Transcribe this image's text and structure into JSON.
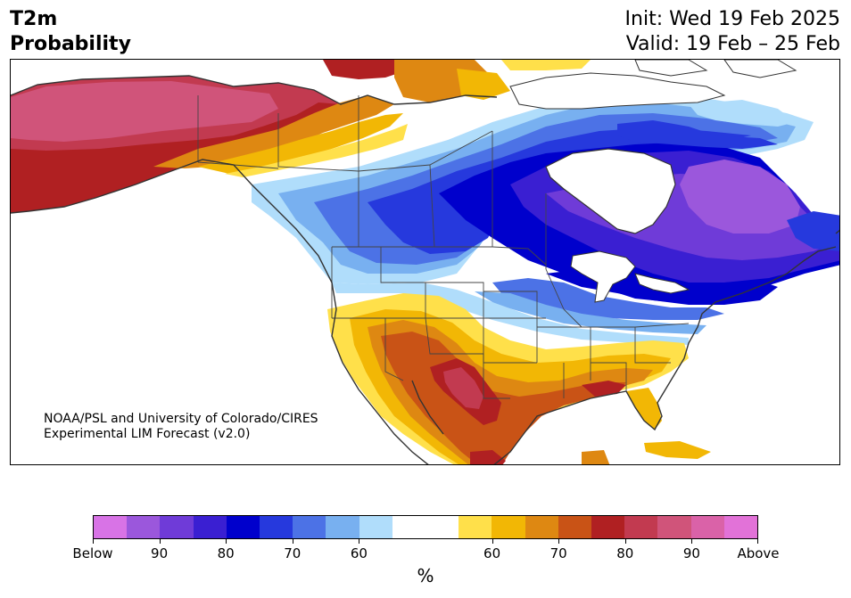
{
  "title": {
    "left_line1": "T2m",
    "left_line2": "Probability",
    "right_line1": "Init: Wed 19 Feb 2025",
    "right_line2": "Valid: 19 Feb – 25 Feb"
  },
  "map": {
    "region": "North America",
    "credit_line1": "NOAA/PSL and University of Colorado/CIRES",
    "credit_line2": "Experimental LIM Forecast (v2.0)"
  },
  "colorbar": {
    "unit": "%",
    "colors": [
      "#d873e6",
      "#9b57dc",
      "#6f3bd8",
      "#3a1fd2",
      "#0000cc",
      "#2639dd",
      "#4c72e6",
      "#78b0f0",
      "#b0ddfb",
      "#ffffff",
      "#ffffff",
      "#ffe04a",
      "#f2b705",
      "#de8812",
      "#c95316",
      "#b02022",
      "#c23a50",
      "#d0547a",
      "#da62a8",
      "#e272d8"
    ],
    "labels": [
      "Below",
      "90",
      "80",
      "70",
      "60",
      "60",
      "70",
      "80",
      "90",
      "Above"
    ],
    "label_positions": [
      0,
      2,
      4,
      6,
      8,
      12,
      14,
      16,
      18,
      20
    ]
  }
}
